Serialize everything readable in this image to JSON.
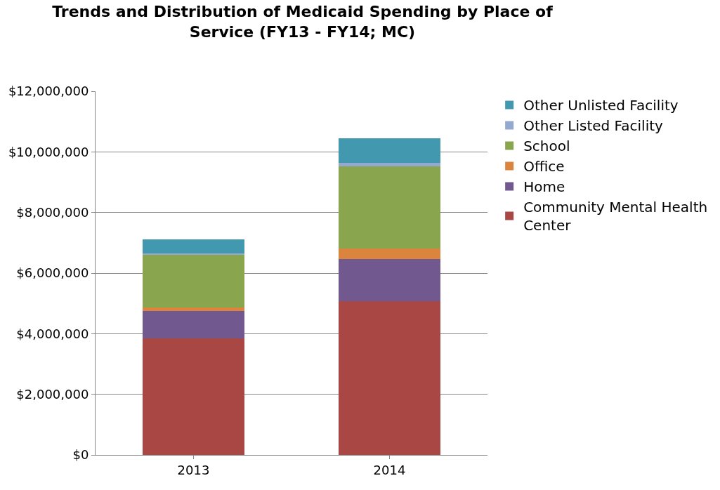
{
  "chart_data": {
    "type": "bar",
    "title": "Trends and Distribution of Medicaid Spending by Place of Service (FY13 - FY14; MC)",
    "categories": [
      "2013",
      "2014"
    ],
    "stacked": true,
    "series": [
      {
        "name": "Community Mental Health Center",
        "color": "#a84744",
        "values": [
          3850000,
          5070000
        ]
      },
      {
        "name": "Home",
        "color": "#71588f",
        "values": [
          900000,
          1400000
        ]
      },
      {
        "name": "Office",
        "color": "#db843d",
        "values": [
          110000,
          350000
        ]
      },
      {
        "name": "School",
        "color": "#89a54e",
        "values": [
          1740000,
          2710000
        ]
      },
      {
        "name": "Other Listed Facility",
        "color": "#93a9cf",
        "values": [
          60000,
          110000
        ]
      },
      {
        "name": "Other Unlisted Facility",
        "color": "#4198af",
        "values": [
          460000,
          800000
        ]
      }
    ],
    "ylim": [
      0,
      12000000
    ],
    "yticks": [
      {
        "value": 0,
        "label": "$0"
      },
      {
        "value": 2000000,
        "label": "$2,000,000"
      },
      {
        "value": 4000000,
        "label": "$4,000,000"
      },
      {
        "value": 6000000,
        "label": "$6,000,000"
      },
      {
        "value": 8000000,
        "label": "$8,000,000"
      },
      {
        "value": 10000000,
        "label": "$10,000,000"
      },
      {
        "value": 12000000,
        "label": "$12,000,000"
      }
    ],
    "grid": "y",
    "legend": "right"
  }
}
